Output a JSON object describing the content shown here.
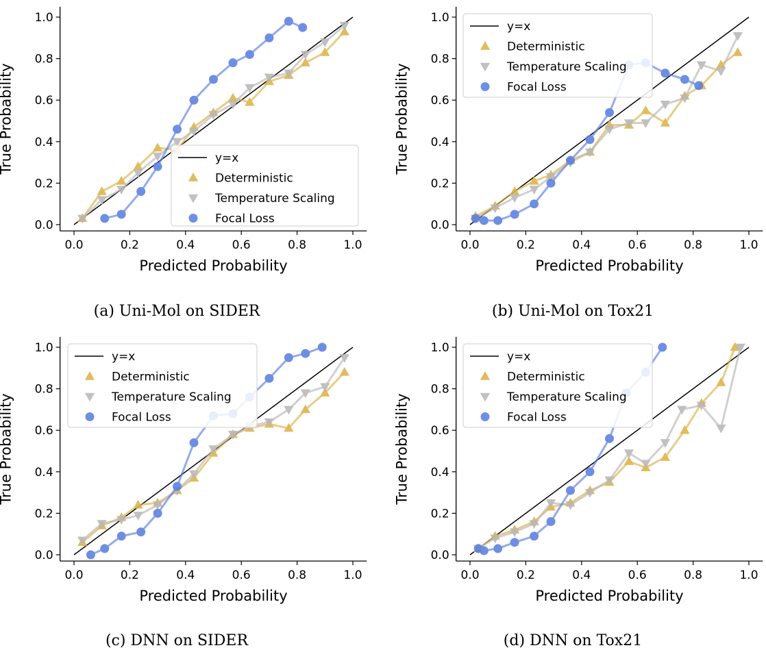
{
  "colors": {
    "identity": "#000000",
    "deterministic": "#DDB247",
    "temperature_scaling": "#B8B8B8",
    "focal_loss": "#5B7FE0"
  },
  "chart_data": [
    {
      "type": "line",
      "caption": "(a) Uni-Mol on SIDER",
      "xlabel": "Predicted Probability",
      "ylabel": "True Probability",
      "xlim": [
        -0.05,
        1.05
      ],
      "ylim": [
        -0.03,
        1.05
      ],
      "xticks": [
        "0.0",
        "0.2",
        "0.4",
        "0.6",
        "0.8",
        "1.0"
      ],
      "yticks": [
        "0.0",
        "0.2",
        "0.4",
        "0.6",
        "0.8",
        "1.0"
      ],
      "legend_position": "lower-right",
      "grid": false,
      "series": [
        {
          "name": "y=x",
          "marker": "line",
          "x": [
            0,
            1
          ],
          "y": [
            0,
            1
          ]
        },
        {
          "name": "Deterministic",
          "marker": "triangle-up",
          "x": [
            0.03,
            0.1,
            0.17,
            0.23,
            0.3,
            0.37,
            0.43,
            0.5,
            0.57,
            0.63,
            0.7,
            0.77,
            0.83,
            0.9,
            0.97
          ],
          "y": [
            0.03,
            0.16,
            0.21,
            0.28,
            0.37,
            0.36,
            0.47,
            0.54,
            0.61,
            0.59,
            0.69,
            0.72,
            0.78,
            0.83,
            0.93
          ]
        },
        {
          "name": "Temperature Scaling",
          "marker": "triangle-down",
          "x": [
            0.03,
            0.1,
            0.17,
            0.23,
            0.3,
            0.37,
            0.43,
            0.5,
            0.57,
            0.63,
            0.7,
            0.77,
            0.83,
            0.9,
            0.97
          ],
          "y": [
            0.03,
            0.12,
            0.17,
            0.25,
            0.33,
            0.4,
            0.45,
            0.53,
            0.58,
            0.66,
            0.71,
            0.73,
            0.82,
            0.88,
            0.96
          ]
        },
        {
          "name": "Focal Loss",
          "marker": "circle",
          "x": [
            0.11,
            0.17,
            0.24,
            0.3,
            0.37,
            0.43,
            0.5,
            0.57,
            0.63,
            0.7,
            0.77,
            0.82
          ],
          "y": [
            0.03,
            0.05,
            0.16,
            0.28,
            0.46,
            0.6,
            0.7,
            0.78,
            0.82,
            0.9,
            0.98,
            0.95
          ]
        }
      ]
    },
    {
      "type": "line",
      "caption": "(b) Uni-Mol on Tox21",
      "xlabel": "Predicted Probability",
      "ylabel": "True Probability",
      "xlim": [
        -0.05,
        1.05
      ],
      "ylim": [
        -0.03,
        1.05
      ],
      "xticks": [
        "0.0",
        "0.2",
        "0.4",
        "0.6",
        "0.8",
        "1.0"
      ],
      "yticks": [
        "0.0",
        "0.2",
        "0.4",
        "0.6",
        "0.8",
        "1.0"
      ],
      "legend_position": "upper-left",
      "grid": false,
      "series": [
        {
          "name": "y=x",
          "marker": "line",
          "x": [
            0,
            1
          ],
          "y": [
            0,
            1
          ]
        },
        {
          "name": "Deterministic",
          "marker": "triangle-up",
          "x": [
            0.02,
            0.09,
            0.16,
            0.23,
            0.29,
            0.36,
            0.43,
            0.5,
            0.57,
            0.63,
            0.7,
            0.77,
            0.83,
            0.9,
            0.96
          ],
          "y": [
            0.04,
            0.09,
            0.16,
            0.21,
            0.24,
            0.31,
            0.35,
            0.48,
            0.48,
            0.55,
            0.49,
            0.62,
            0.67,
            0.77,
            0.83
          ]
        },
        {
          "name": "Temperature Scaling",
          "marker": "triangle-down",
          "x": [
            0.02,
            0.09,
            0.16,
            0.23,
            0.29,
            0.36,
            0.43,
            0.5,
            0.57,
            0.63,
            0.7,
            0.77,
            0.83,
            0.9,
            0.96
          ],
          "y": [
            0.03,
            0.08,
            0.13,
            0.17,
            0.23,
            0.3,
            0.35,
            0.46,
            0.49,
            0.49,
            0.58,
            0.61,
            0.77,
            0.74,
            0.91
          ]
        },
        {
          "name": "Focal Loss",
          "marker": "circle",
          "x": [
            0.02,
            0.05,
            0.1,
            0.16,
            0.23,
            0.29,
            0.36,
            0.43,
            0.5,
            0.57,
            0.63,
            0.7,
            0.77,
            0.82
          ],
          "y": [
            0.03,
            0.02,
            0.02,
            0.05,
            0.1,
            0.2,
            0.31,
            0.41,
            0.54,
            0.77,
            0.78,
            0.73,
            0.7,
            0.67
          ]
        }
      ]
    },
    {
      "type": "line",
      "caption": "(c) DNN on SIDER",
      "xlabel": "Predicted Probability",
      "ylabel": "True Probability",
      "xlim": [
        -0.05,
        1.05
      ],
      "ylim": [
        -0.03,
        1.05
      ],
      "xticks": [
        "0.0",
        "0.2",
        "0.4",
        "0.6",
        "0.8",
        "1.0"
      ],
      "yticks": [
        "0.0",
        "0.2",
        "0.4",
        "0.6",
        "0.8",
        "1.0"
      ],
      "legend_position": "upper-left",
      "grid": false,
      "series": [
        {
          "name": "y=x",
          "marker": "line",
          "x": [
            0,
            1
          ],
          "y": [
            0,
            1
          ]
        },
        {
          "name": "Deterministic",
          "marker": "triangle-up",
          "x": [
            0.03,
            0.1,
            0.17,
            0.23,
            0.3,
            0.37,
            0.43,
            0.5,
            0.57,
            0.63,
            0.7,
            0.77,
            0.83,
            0.9,
            0.97
          ],
          "y": [
            0.06,
            0.14,
            0.18,
            0.24,
            0.25,
            0.31,
            0.37,
            0.49,
            0.58,
            0.61,
            0.63,
            0.61,
            0.7,
            0.78,
            0.88
          ]
        },
        {
          "name": "Temperature Scaling",
          "marker": "triangle-down",
          "x": [
            0.03,
            0.1,
            0.17,
            0.23,
            0.3,
            0.37,
            0.43,
            0.5,
            0.57,
            0.63,
            0.7,
            0.77,
            0.83,
            0.9,
            0.97
          ],
          "y": [
            0.07,
            0.15,
            0.17,
            0.19,
            0.24,
            0.31,
            0.39,
            0.51,
            0.58,
            0.62,
            0.64,
            0.7,
            0.78,
            0.81,
            0.95
          ]
        },
        {
          "name": "Focal Loss",
          "marker": "circle",
          "x": [
            0.06,
            0.11,
            0.17,
            0.24,
            0.3,
            0.37,
            0.43,
            0.5,
            0.57,
            0.63,
            0.7,
            0.77,
            0.83,
            0.89
          ],
          "y": [
            0.0,
            0.03,
            0.09,
            0.11,
            0.2,
            0.33,
            0.54,
            0.67,
            0.68,
            0.76,
            0.85,
            0.95,
            0.97,
            1.0
          ]
        }
      ]
    },
    {
      "type": "line",
      "caption": "(d) DNN on Tox21",
      "xlabel": "Predicted Probability",
      "ylabel": "True Probability",
      "xlim": [
        -0.05,
        1.05
      ],
      "ylim": [
        -0.03,
        1.05
      ],
      "xticks": [
        "0.0",
        "0.2",
        "0.4",
        "0.6",
        "0.8",
        "1.0"
      ],
      "yticks": [
        "0.0",
        "0.2",
        "0.4",
        "0.6",
        "0.8",
        "1.0"
      ],
      "legend_position": "upper-left",
      "grid": false,
      "series": [
        {
          "name": "y=x",
          "marker": "line",
          "x": [
            0,
            1
          ],
          "y": [
            0,
            1
          ]
        },
        {
          "name": "Deterministic",
          "marker": "triangle-up",
          "x": [
            0.03,
            0.09,
            0.16,
            0.23,
            0.29,
            0.36,
            0.43,
            0.5,
            0.57,
            0.63,
            0.7,
            0.77,
            0.83,
            0.9,
            0.95
          ],
          "y": [
            0.03,
            0.09,
            0.12,
            0.16,
            0.23,
            0.25,
            0.31,
            0.35,
            0.45,
            0.42,
            0.47,
            0.6,
            0.73,
            0.83,
            1.0
          ]
        },
        {
          "name": "Temperature Scaling",
          "marker": "triangle-down",
          "x": [
            0.03,
            0.09,
            0.16,
            0.23,
            0.29,
            0.36,
            0.43,
            0.5,
            0.57,
            0.63,
            0.7,
            0.76,
            0.83,
            0.9,
            0.97
          ],
          "y": [
            0.03,
            0.08,
            0.11,
            0.15,
            0.25,
            0.24,
            0.3,
            0.36,
            0.49,
            0.44,
            0.54,
            0.7,
            0.72,
            0.61,
            1.0
          ]
        },
        {
          "name": "Focal Loss",
          "marker": "circle",
          "x": [
            0.03,
            0.05,
            0.1,
            0.16,
            0.23,
            0.29,
            0.36,
            0.43,
            0.5,
            0.56,
            0.63,
            0.69
          ],
          "y": [
            0.03,
            0.02,
            0.03,
            0.06,
            0.09,
            0.16,
            0.31,
            0.4,
            0.56,
            0.78,
            0.88,
            1.0
          ]
        }
      ]
    }
  ]
}
